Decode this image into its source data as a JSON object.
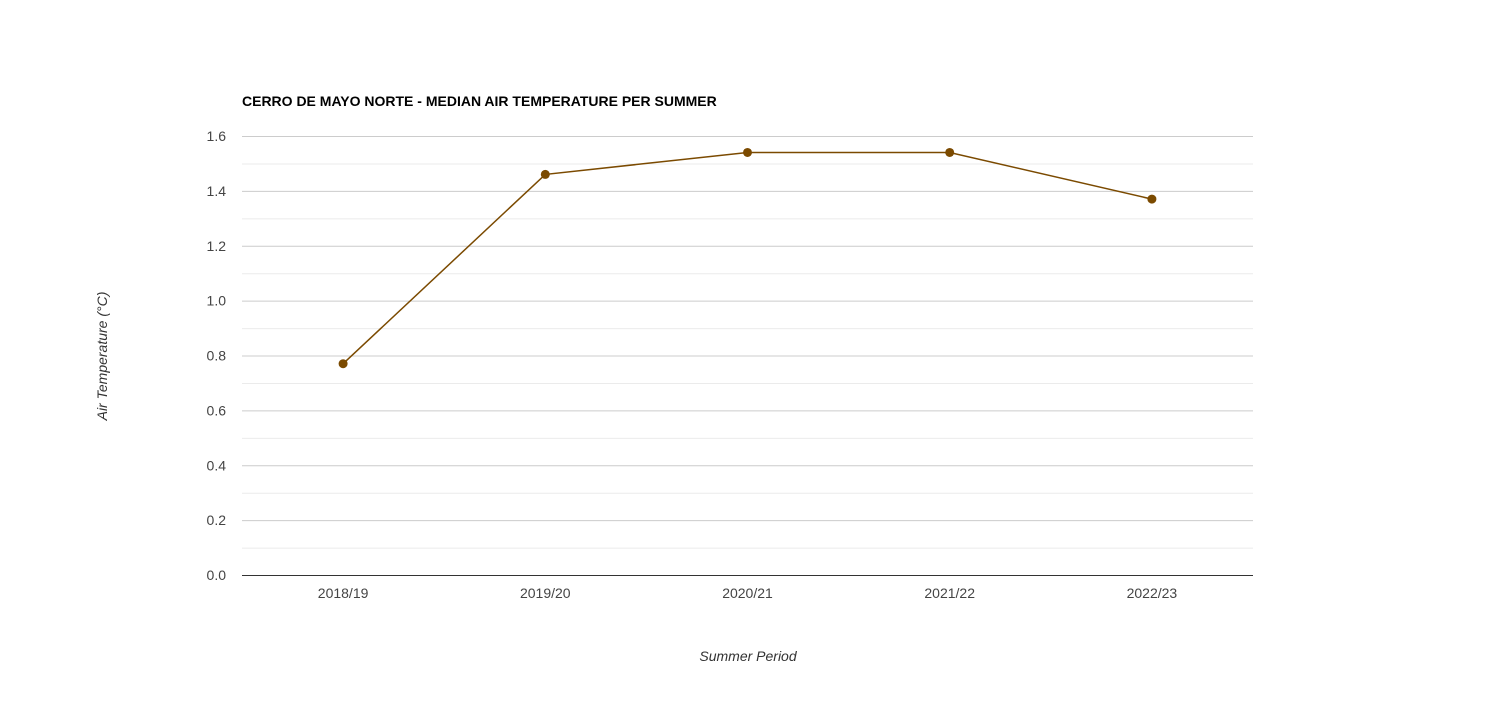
{
  "chart_data": {
    "type": "line",
    "title": "CERRO DE MAYO NORTE - MEDIAN AIR TEMPERATURE PER SUMMER",
    "xlabel": "Summer Period",
    "ylabel": "Air Temperature (°C)",
    "categories": [
      "2018/19",
      "2019/20",
      "2020/21",
      "2021/22",
      "2022/23"
    ],
    "series": [
      {
        "values": [
          0.77,
          1.46,
          1.54,
          1.54,
          1.37
        ],
        "color": "#7b4a00"
      }
    ],
    "ylim": [
      0,
      1.6
    ],
    "yticks": [
      "0.0",
      "0.2",
      "0.4",
      "0.6",
      "0.8",
      "1.0",
      "1.2",
      "1.4",
      "1.6"
    ],
    "grid": true,
    "legend": "none"
  }
}
